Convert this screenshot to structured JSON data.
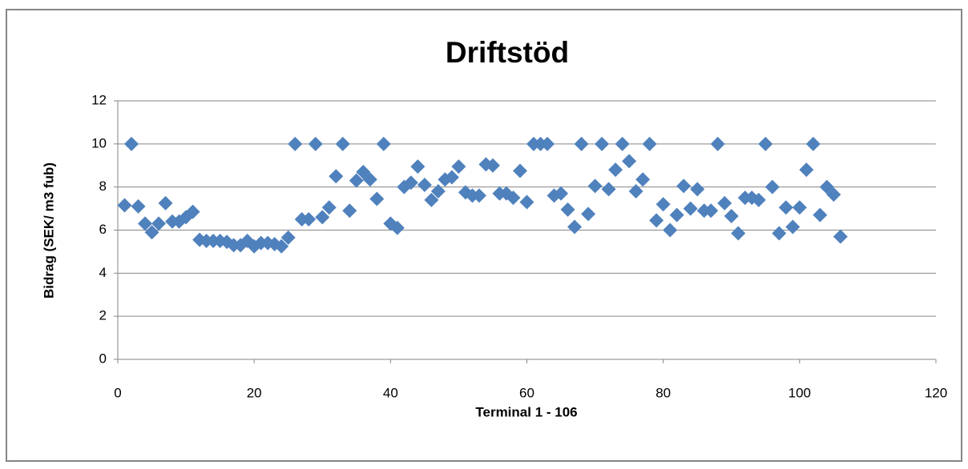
{
  "chart_data": {
    "type": "scatter",
    "title": "Driftstöd",
    "x_label": "Terminal 1 - 106",
    "y_label": "Bidrag (SEK/ m3 fub)",
    "series": [
      {
        "name": "Bidrag",
        "color": "#4f81bd",
        "x": [
          1,
          2,
          3,
          4,
          5,
          6,
          7,
          8,
          9,
          10,
          11,
          12,
          13,
          14,
          15,
          16,
          17,
          18,
          19,
          20,
          21,
          22,
          23,
          24,
          25,
          26,
          27,
          28,
          29,
          30,
          31,
          32,
          33,
          34,
          35,
          36,
          37,
          38,
          39,
          40,
          41,
          42,
          43,
          44,
          45,
          46,
          47,
          48,
          49,
          50,
          51,
          52,
          53,
          54,
          55,
          56,
          57,
          58,
          59,
          60,
          61,
          62,
          63,
          64,
          65,
          66,
          67,
          68,
          69,
          70,
          71,
          72,
          73,
          74,
          75,
          76,
          77,
          78,
          79,
          80,
          81,
          82,
          83,
          84,
          85,
          86,
          87,
          88,
          89,
          90,
          91,
          92,
          93,
          94,
          95,
          96,
          97,
          98,
          99,
          100,
          101,
          102,
          103,
          104,
          105,
          106
        ],
        "values": [
          7.15,
          10,
          7.1,
          6.3,
          5.9,
          6.3,
          7.25,
          6.4,
          6.4,
          6.6,
          6.85,
          5.55,
          5.5,
          5.5,
          5.5,
          5.45,
          5.3,
          5.3,
          5.5,
          5.25,
          5.4,
          5.4,
          5.35,
          5.25,
          5.65,
          10,
          6.5,
          6.5,
          10,
          6.6,
          7.05,
          8.5,
          10,
          6.9,
          8.3,
          8.7,
          8.35,
          7.45,
          10,
          6.3,
          6.1,
          8.0,
          8.2,
          8.95,
          8.1,
          7.4,
          7.8,
          8.35,
          8.45,
          8.95,
          7.75,
          7.6,
          7.6,
          9.05,
          9.0,
          7.7,
          7.7,
          7.5,
          8.75,
          7.3,
          10,
          10,
          10,
          7.6,
          7.7,
          6.95,
          6.15,
          10,
          6.75,
          8.05,
          10,
          7.9,
          8.8,
          10,
          9.2,
          7.8,
          8.35,
          10,
          6.45,
          7.2,
          6.0,
          6.7,
          8.05,
          7.0,
          7.9,
          6.9,
          6.9,
          10,
          7.25,
          6.65,
          5.85,
          7.5,
          7.5,
          7.4,
          10,
          8.0,
          5.85,
          7.05,
          6.15,
          7.05,
          8.8,
          10,
          6.7,
          8.0,
          7.65,
          5.7
        ]
      }
    ],
    "xlim": [
      0,
      120
    ],
    "xticks": [
      0,
      20,
      40,
      60,
      80,
      100,
      120
    ],
    "ylim": [
      0,
      12
    ],
    "yticks": [
      0,
      2,
      4,
      6,
      8,
      10,
      12
    ],
    "grid": true
  }
}
